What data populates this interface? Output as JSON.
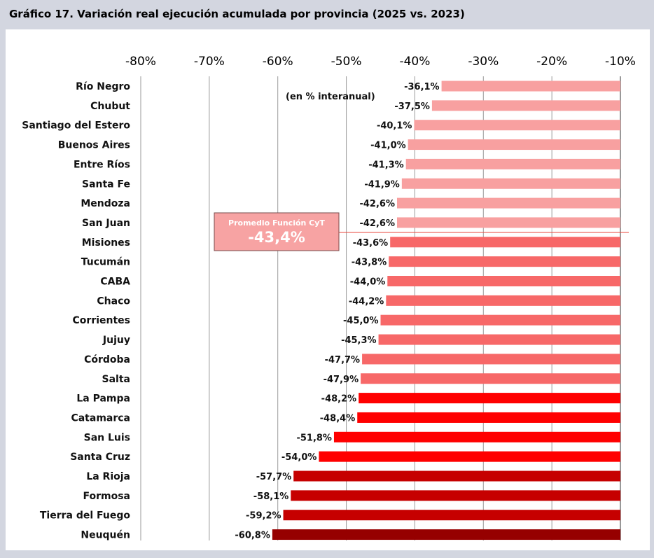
{
  "title": "Gráfico 17. Variación real ejecución acumulada por provincia (2025 vs. 2023)",
  "annotation_unit": "(en % interanual)",
  "average_box": {
    "label": "Promedio Función CyT",
    "value_label": "-43,4%",
    "value": -43.4,
    "fill_color": "#f7a3a3",
    "line_color": "#e8463b"
  },
  "chart_data": {
    "type": "bar",
    "orientation": "horizontal",
    "title": "Gráfico 17. Variación real ejecución acumulada por provincia (2025 vs. 2023)",
    "xlim": [
      -80,
      -10
    ],
    "x_ticks": [
      -80,
      -70,
      -60,
      -50,
      -40,
      -30,
      -20,
      -10
    ],
    "x_tick_labels": [
      "-80%",
      "-70%",
      "-60%",
      "-50%",
      "-40%",
      "-30%",
      "-20%",
      "-10%"
    ],
    "x_axis_position": "top",
    "grid": true,
    "categories": [
      "Río Negro",
      "Chubut",
      "Santiago del Estero",
      "Buenos Aires",
      "Entre Ríos",
      "Santa Fe",
      "Mendoza",
      "San Juan",
      "Misiones",
      "Tucumán",
      "CABA",
      "Chaco",
      "Corrientes",
      "Jujuy",
      "Córdoba",
      "Salta",
      "La Pampa",
      "Catamarca",
      "San Luis",
      "Santa Cruz",
      "La Rioja",
      "Formosa",
      "Tierra del Fuego",
      "Neuquén"
    ],
    "values": [
      -36.1,
      -37.5,
      -40.1,
      -41.0,
      -41.3,
      -41.9,
      -42.6,
      -42.6,
      -43.6,
      -43.8,
      -44.0,
      -44.2,
      -45.0,
      -45.3,
      -47.7,
      -47.9,
      -48.2,
      -48.4,
      -51.8,
      -54.0,
      -57.7,
      -58.1,
      -59.2,
      -60.8
    ],
    "value_labels": [
      "-36,1%",
      "-37,5%",
      "-40,1%",
      "-41,0%",
      "-41,3%",
      "-41,9%",
      "-42,6%",
      "-42,6%",
      "-43,6%",
      "-43,8%",
      "-44,0%",
      "-44,2%",
      "-45,0%",
      "-45,3%",
      "-47,7%",
      "-47,9%",
      "-48,2%",
      "-48,4%",
      "-51,8%",
      "-54,0%",
      "-57,7%",
      "-58,1%",
      "-59,2%",
      "-60,8%"
    ],
    "bar_colors": [
      "#f8a0a0",
      "#f8a0a0",
      "#f8a0a0",
      "#f8a0a0",
      "#f8a0a0",
      "#f8a0a0",
      "#f8a0a0",
      "#f8a0a0",
      "#f76868",
      "#f76868",
      "#f76868",
      "#f76868",
      "#f76868",
      "#f76868",
      "#f76868",
      "#f76868",
      "#ff0000",
      "#ff0000",
      "#ff0000",
      "#ff0000",
      "#c60000",
      "#c60000",
      "#c60000",
      "#960000"
    ]
  }
}
